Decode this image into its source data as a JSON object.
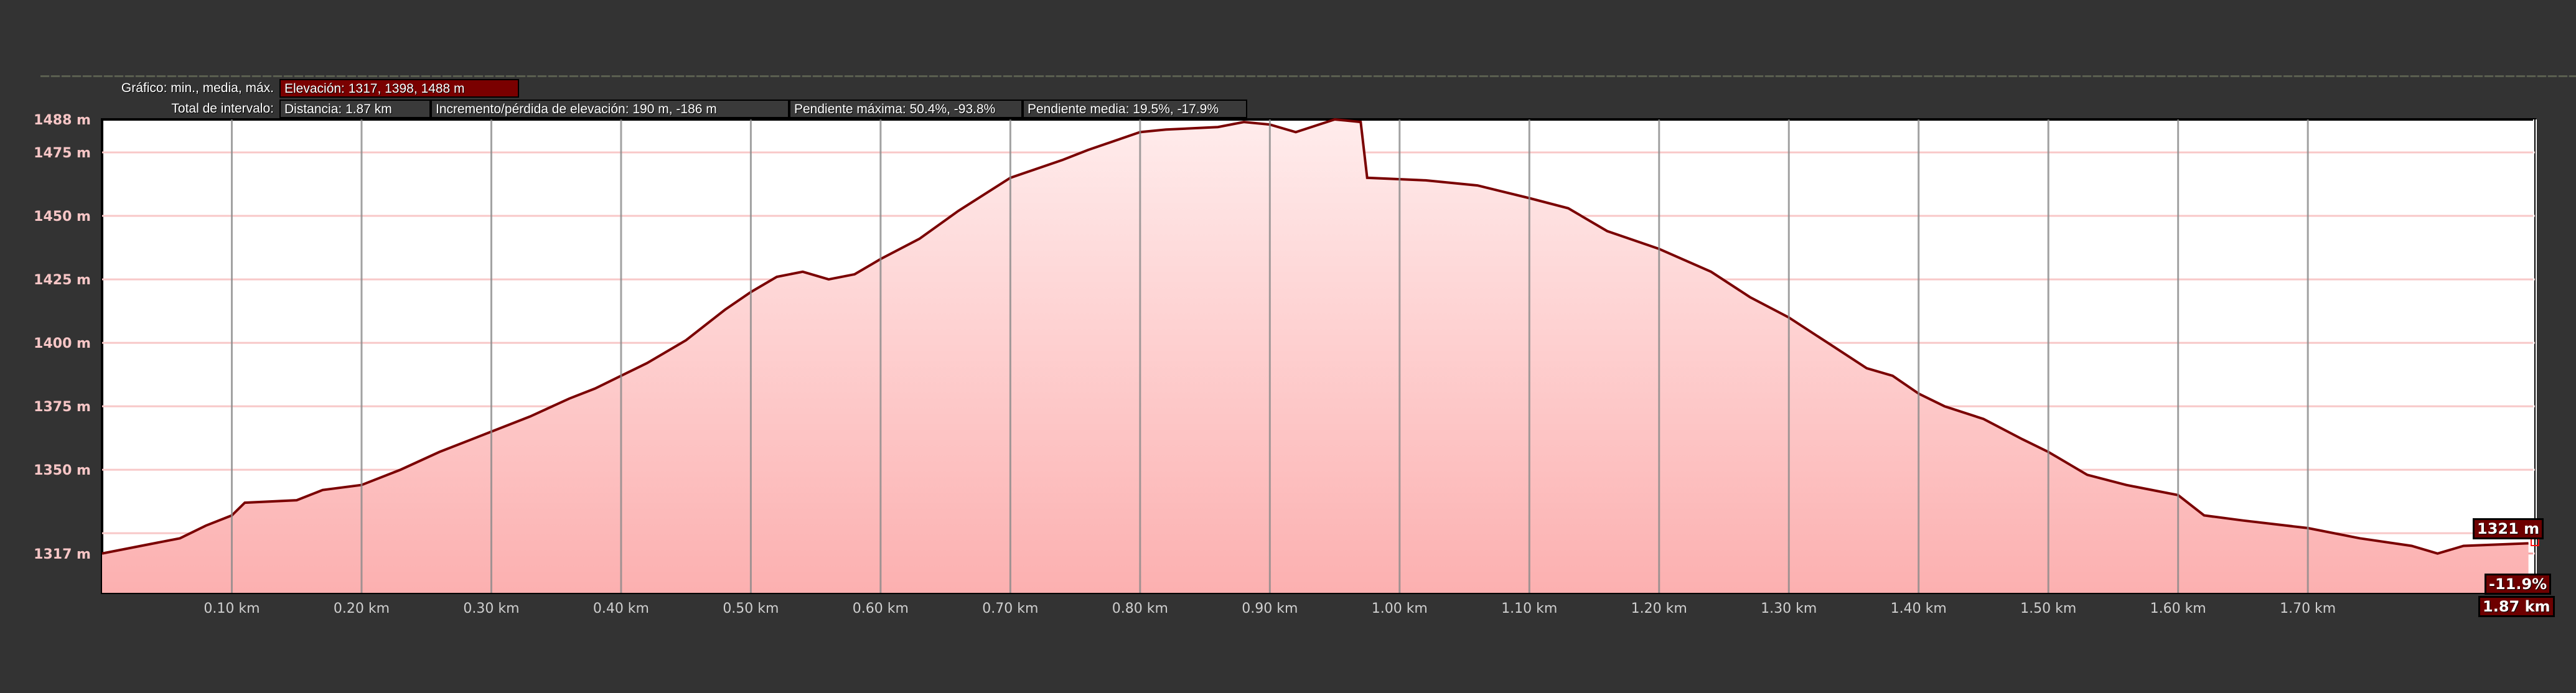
{
  "header": {
    "chart_label": "Gráfico: min., media, máx.",
    "elevation_stats": "Elevación: 1317, 1398, 1488 m",
    "interval_label": "Total de intervalo:",
    "distance": "Distancia: 1.87 km",
    "gain_loss": "Incremento/pérdida de elevación: 190 m, -186 m",
    "max_slope": "Pendiente máxima: 50.4%, -93.8%",
    "avg_slope": "Pendiente media: 19.5%, -17.9%"
  },
  "cursor": {
    "elevation": "1321 m",
    "slope": "-11.9%",
    "distance": "1.87 km"
  },
  "colors": {
    "line": "#7a0000",
    "fill_top": "#ffecec",
    "fill_bottom": "#fcb0b0",
    "grid_h": "#f8c8c8",
    "grid_v": "#8a8a8a"
  },
  "chart_data": {
    "type": "area",
    "xlabel": "",
    "ylabel": "",
    "xlim": [
      0,
      1.875
    ],
    "ylim": [
      1301.5,
      1488
    ],
    "grid": true,
    "x_ticks": [
      0.1,
      0.2,
      0.3,
      0.4,
      0.5,
      0.6,
      0.7,
      0.8,
      0.9,
      1.0,
      1.1,
      1.2,
      1.3,
      1.4,
      1.5,
      1.6,
      1.7
    ],
    "x_tick_labels": [
      "0.10 km",
      "0.20 km",
      "0.30 km",
      "0.40 km",
      "0.50 km",
      "0.60 km",
      "0.70 km",
      "0.80 km",
      "0.90 km",
      "1.00 km",
      "1.10 km",
      "1.20 km",
      "1.30 km",
      "1.40 km",
      "1.50 km",
      "1.60 km",
      "1.70 km"
    ],
    "y_ticks": [
      1488,
      1475,
      1450,
      1425,
      1400,
      1375,
      1350,
      1317
    ],
    "y_tick_labels": [
      "1488 m",
      "1475 m",
      "1450 m",
      "1425 m",
      "1400 m",
      "1375 m",
      "1350 m",
      "1317 m"
    ],
    "y_grid": [
      1475,
      1450,
      1425,
      1400,
      1375,
      1350,
      1325,
      1317
    ],
    "x": [
      0,
      0.03,
      0.06,
      0.08,
      0.1,
      0.11,
      0.15,
      0.17,
      0.2,
      0.23,
      0.26,
      0.3,
      0.33,
      0.36,
      0.38,
      0.4,
      0.42,
      0.45,
      0.48,
      0.5,
      0.52,
      0.54,
      0.56,
      0.58,
      0.6,
      0.63,
      0.66,
      0.7,
      0.74,
      0.76,
      0.8,
      0.82,
      0.86,
      0.88,
      0.9,
      0.92,
      0.95,
      0.97,
      0.975,
      1.02,
      1.06,
      1.1,
      1.13,
      1.16,
      1.2,
      1.24,
      1.27,
      1.3,
      1.33,
      1.36,
      1.38,
      1.4,
      1.42,
      1.45,
      1.48,
      1.5,
      1.53,
      1.56,
      1.6,
      1.62,
      1.65,
      1.7,
      1.74,
      1.78,
      1.8,
      1.82,
      1.87
    ],
    "y": [
      1317,
      1320,
      1323,
      1328,
      1332,
      1337,
      1338,
      1342,
      1344,
      1350,
      1357,
      1365,
      1371,
      1378,
      1382,
      1387,
      1392,
      1401,
      1413,
      1420,
      1426,
      1428,
      1425,
      1427,
      1433,
      1441,
      1452,
      1465,
      1472,
      1476,
      1483,
      1484,
      1485,
      1487,
      1486,
      1483,
      1488,
      1487,
      1465,
      1464,
      1462,
      1457,
      1453,
      1444,
      1437,
      1428,
      1418,
      1410,
      1400,
      1390,
      1387,
      1380,
      1375,
      1370,
      1362,
      1357,
      1348,
      1344,
      1340,
      1332,
      1330,
      1327,
      1323,
      1320,
      1317,
      1320,
      1321
    ]
  }
}
